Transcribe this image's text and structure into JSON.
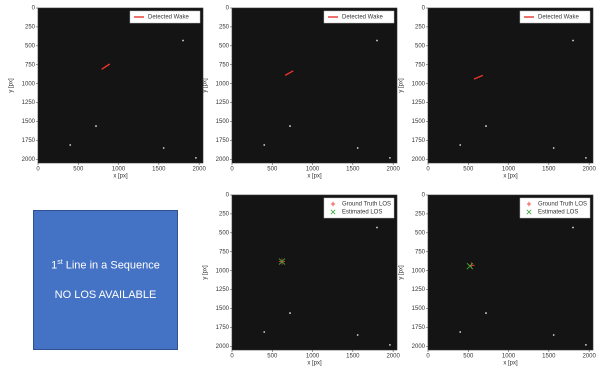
{
  "chart_data": [
    {
      "type": "line",
      "xlabel": "x [px]",
      "ylabel": "y [px]",
      "xlim": [
        0,
        2048
      ],
      "ylim": [
        2048,
        0
      ],
      "xticks": [
        0,
        500,
        1000,
        1500,
        2000
      ],
      "yticks": [
        0,
        250,
        500,
        750,
        1000,
        1250,
        1500,
        1750,
        2000
      ],
      "legend": "upper right",
      "series": [
        {
          "name": "Detected Wake",
          "color": "#e8352b",
          "x": [
            790,
            890
          ],
          "values": [
            810,
            740
          ]
        },
        {
          "color": "#d8d8c0",
          "x": [
            720,
            400,
            1560,
            1800,
            1960
          ],
          "values": [
            1560,
            1810,
            1850,
            430,
            1980
          ]
        }
      ]
    },
    {
      "type": "line",
      "xlabel": "x [px]",
      "ylabel": "y [px]",
      "xlim": [
        0,
        2048
      ],
      "ylim": [
        2048,
        0
      ],
      "xticks": [
        0,
        500,
        1000,
        1500,
        2000
      ],
      "yticks": [
        0,
        250,
        500,
        750,
        1000,
        1250,
        1500,
        1750,
        2000
      ],
      "legend": "upper right",
      "series": [
        {
          "name": "Detected Wake",
          "color": "#e8352b",
          "x": [
            660,
            760
          ],
          "values": [
            890,
            830
          ]
        },
        {
          "color": "#d8d8c0",
          "x": [
            720,
            400,
            1560,
            1800,
            1960
          ],
          "values": [
            1560,
            1810,
            1850,
            430,
            1980
          ]
        }
      ]
    },
    {
      "type": "line",
      "xlabel": "x [px]",
      "ylabel": "y [px]",
      "xlim": [
        0,
        2048
      ],
      "ylim": [
        2048,
        0
      ],
      "xticks": [
        0,
        500,
        1000,
        1500,
        2000
      ],
      "yticks": [
        0,
        250,
        500,
        750,
        1000,
        1250,
        1500,
        1750,
        2000
      ],
      "legend": "upper right",
      "series": [
        {
          "name": "Detected Wake",
          "color": "#e8352b",
          "x": [
            570,
            680
          ],
          "values": [
            940,
            890
          ]
        },
        {
          "color": "#d8d8c0",
          "x": [
            720,
            400,
            1560,
            1800,
            1960
          ],
          "values": [
            1560,
            1810,
            1850,
            430,
            1980
          ]
        }
      ]
    },
    {
      "type": "scatter",
      "xlabel": "x [px]",
      "ylabel": "y [px]",
      "xlim": [
        0,
        2048
      ],
      "ylim": [
        2048,
        0
      ],
      "xticks": [
        0,
        500,
        1000,
        1500,
        2000
      ],
      "yticks": [
        0,
        250,
        500,
        750,
        1000,
        1250,
        1500,
        1750,
        2000
      ],
      "legend": "upper right",
      "series": [
        {
          "name": "Ground Truth LOS",
          "color": "#e8352b",
          "marker": "+",
          "x": [
            620
          ],
          "values": [
            880
          ]
        },
        {
          "name": "Estimated LOS",
          "color": "#3aa83a",
          "marker": "x",
          "x": [
            620
          ],
          "values": [
            880
          ]
        },
        {
          "color": "#d8d8c0",
          "x": [
            720,
            400,
            1560,
            1800,
            1960
          ],
          "values": [
            1560,
            1810,
            1850,
            430,
            1980
          ]
        }
      ]
    },
    {
      "type": "scatter",
      "xlabel": "x [px]",
      "ylabel": "y [px]",
      "xlim": [
        0,
        2048
      ],
      "ylim": [
        2048,
        0
      ],
      "xticks": [
        0,
        500,
        1000,
        1500,
        2000
      ],
      "yticks": [
        0,
        250,
        500,
        750,
        1000,
        1250,
        1500,
        1750,
        2000
      ],
      "legend": "upper right",
      "series": [
        {
          "name": "Ground Truth LOS",
          "color": "#e8352b",
          "marker": "+",
          "x": [
            540
          ],
          "values": [
            930
          ]
        },
        {
          "name": "Estimated LOS",
          "color": "#3aa83a",
          "marker": "x",
          "x": [
            520
          ],
          "values": [
            940
          ]
        },
        {
          "color": "#d8d8c0",
          "x": [
            720,
            400,
            1560,
            1800,
            1960
          ],
          "values": [
            1560,
            1810,
            1850,
            430,
            1980
          ]
        }
      ]
    }
  ],
  "note": {
    "number": "1",
    "suffix": "st",
    "line1": " Line in a Sequence",
    "line2": "NO LOS AVAILABLE"
  }
}
